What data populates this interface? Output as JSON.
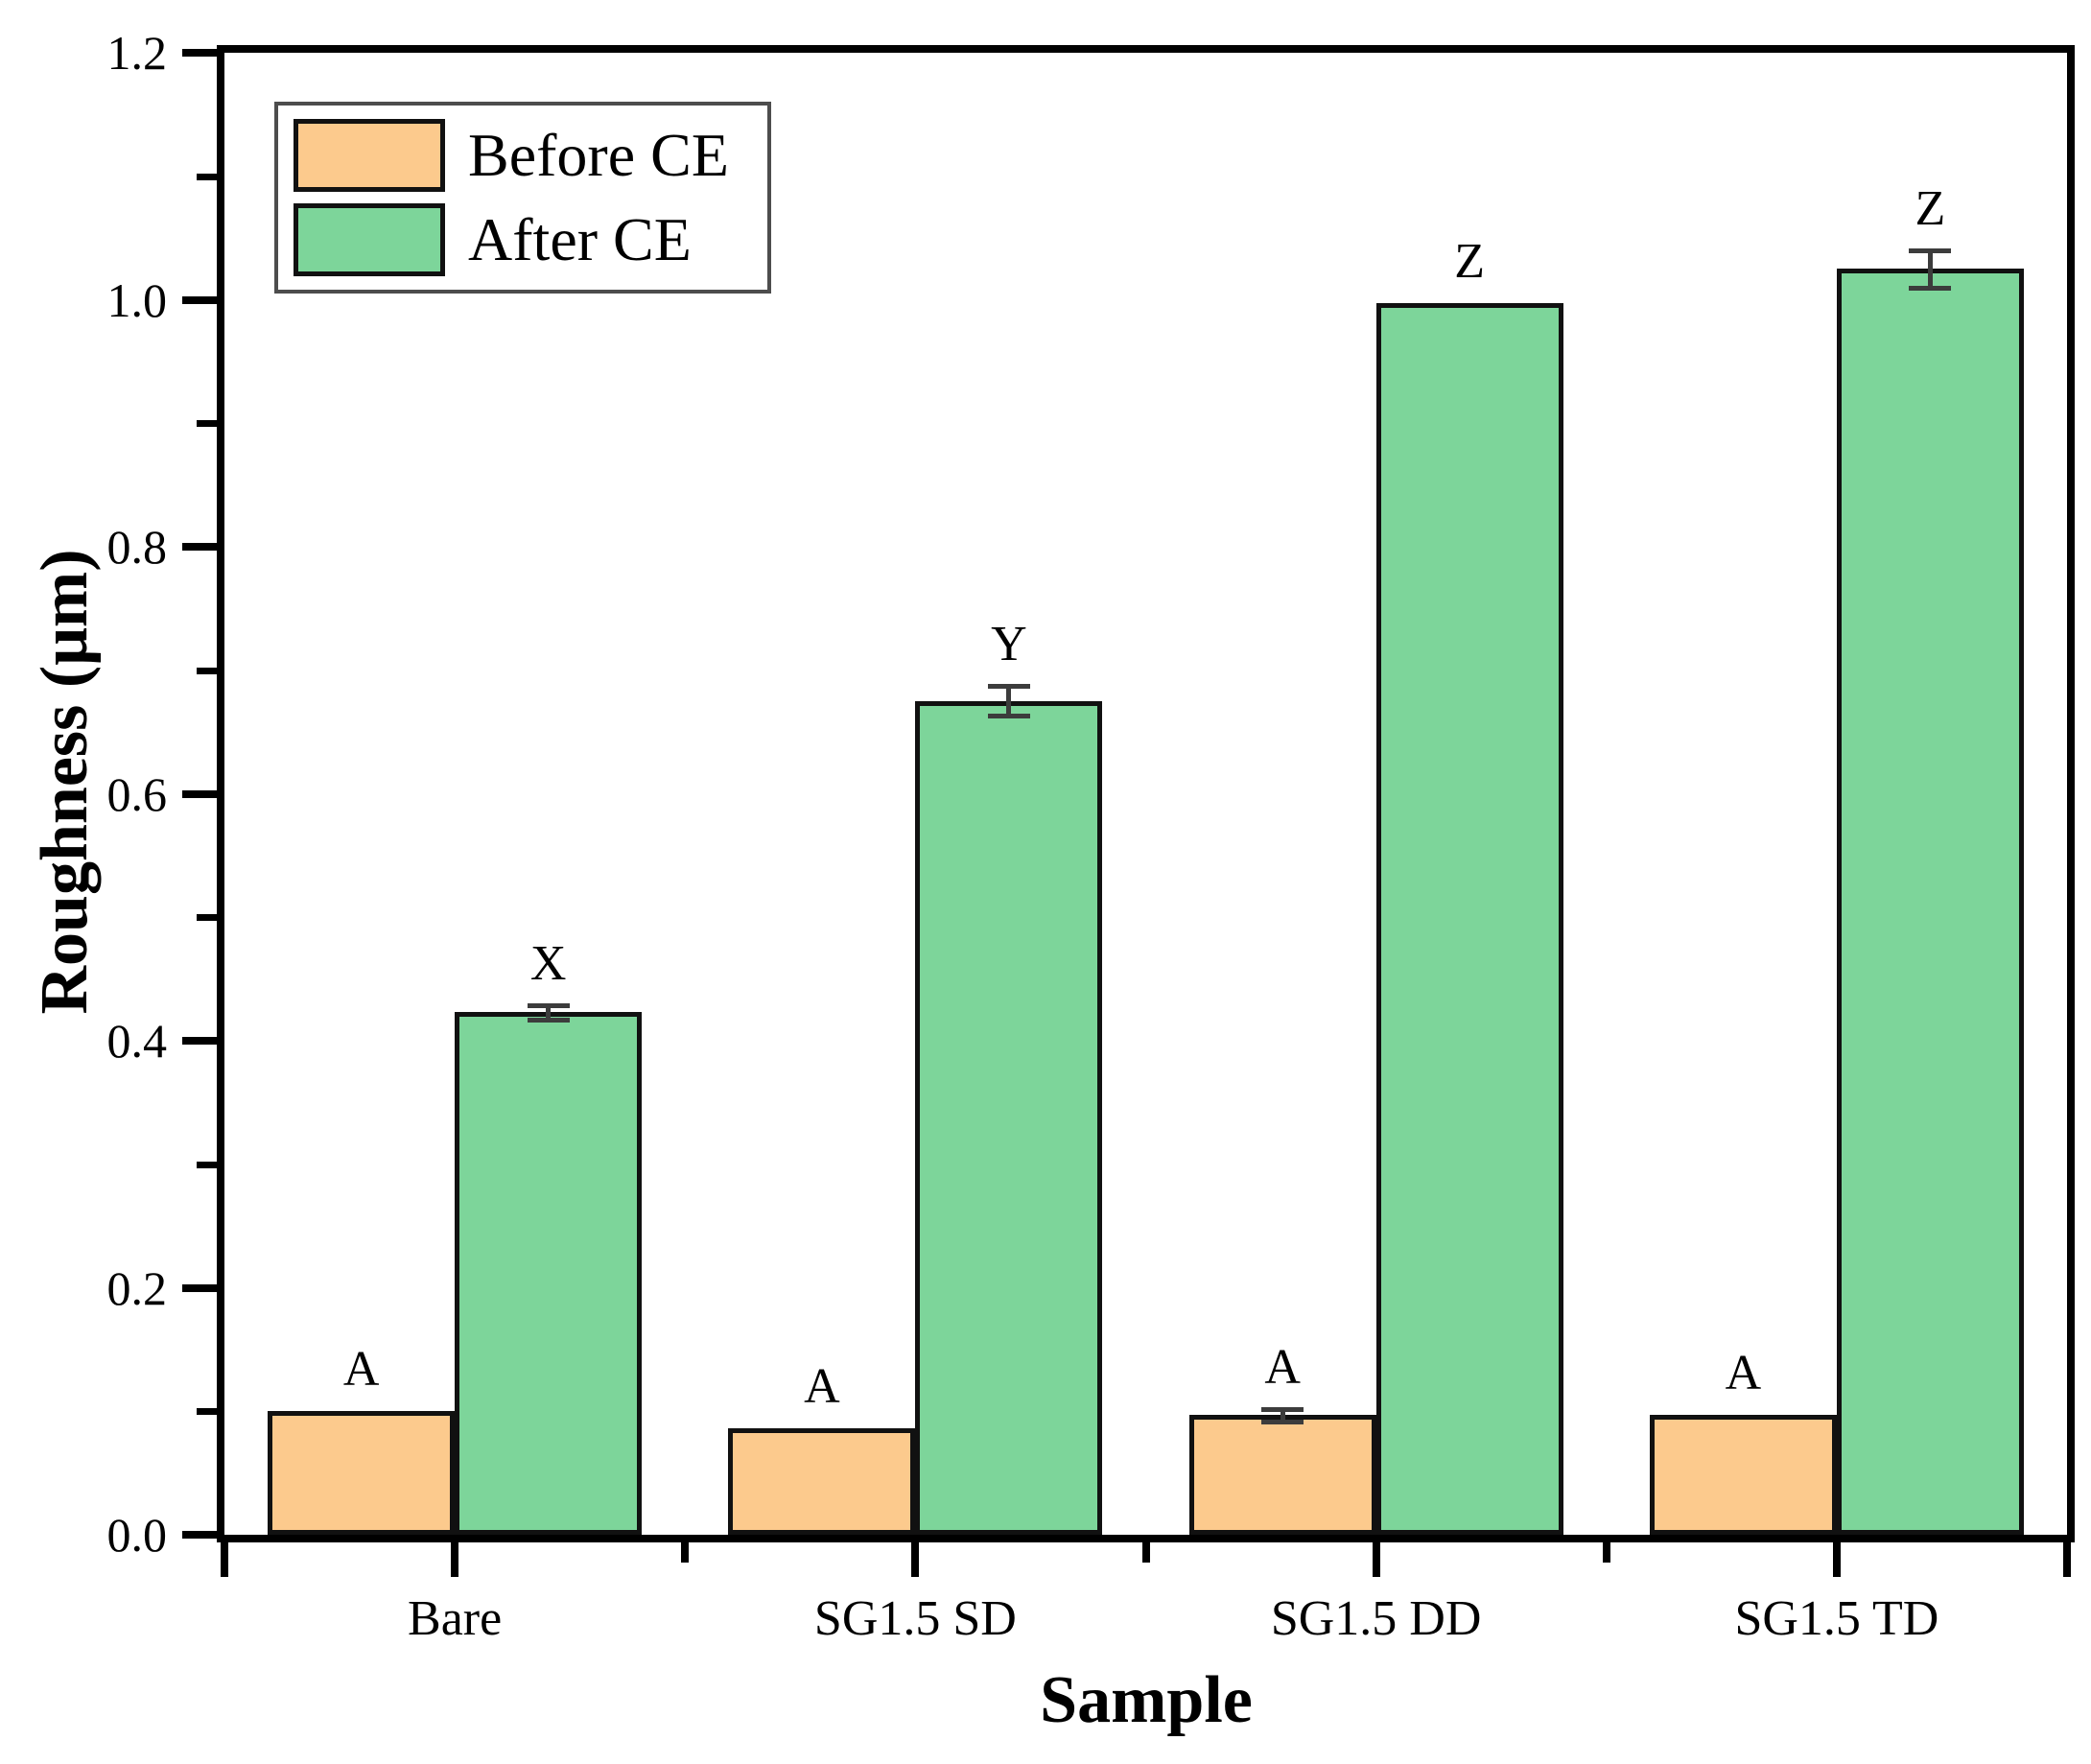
{
  "chart_data": {
    "type": "bar",
    "title": "",
    "xlabel": "Sample",
    "ylabel": "Roughness (μm)",
    "categories": [
      "Bare",
      "SG1.5 SD",
      "SG1.5 DD",
      "SG1.5 TD"
    ],
    "series": [
      {
        "name": "Before CE",
        "color": "#fcca8d",
        "values": [
          0.1,
          0.086,
          0.097,
          0.097
        ],
        "errors": [
          0,
          0,
          0.005,
          0
        ],
        "bar_labels": [
          "A",
          "A",
          "A",
          "A"
        ]
      },
      {
        "name": "After CE",
        "color": "#7dd59a",
        "values": [
          0.423,
          0.675,
          0.997,
          1.025
        ],
        "errors": [
          0.006,
          0.012,
          0,
          0.015
        ],
        "bar_labels": [
          "X",
          "Y",
          "Z",
          "Z"
        ]
      }
    ],
    "ylim": [
      0,
      1.2
    ],
    "ytick_labels": [
      "0.0",
      "0.2",
      "0.4",
      "0.6",
      "0.8",
      "1.0",
      "1.2"
    ],
    "minor_ytick_step": 0.1,
    "bar_edge_color": "#111111",
    "error_bar_color": "#3c3c3c",
    "axis_color": "#000000",
    "legend_border_color": "#4d4d4d",
    "legend_position": "upper-left",
    "grid": false
  }
}
